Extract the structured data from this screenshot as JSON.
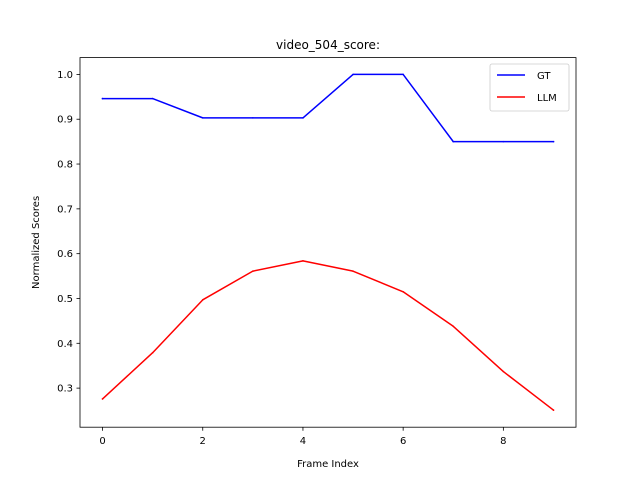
{
  "chart_data": {
    "type": "line",
    "title": "video_504_score:",
    "xlabel": "Frame Index",
    "ylabel": "Normalized Scores",
    "x": [
      0,
      1,
      2,
      3,
      4,
      5,
      6,
      7,
      8,
      9
    ],
    "xlim": [
      -0.45,
      9.45
    ],
    "ylim": [
      0.2128,
      1.0375
    ],
    "xticks": [
      0,
      2,
      4,
      6,
      8
    ],
    "yticks": [
      0.3,
      0.4,
      0.5,
      0.6,
      0.7,
      0.8,
      0.9,
      1.0
    ],
    "ytick_labels": [
      "0.3",
      "0.4",
      "0.5",
      "0.6",
      "0.7",
      "0.8",
      "0.9",
      "1.0"
    ],
    "grid": false,
    "legend_position": "top-right",
    "series": [
      {
        "name": "GT",
        "color": "#0000ff",
        "values": [
          0.946,
          0.946,
          0.903,
          0.903,
          0.903,
          1.0,
          1.0,
          0.85,
          0.85,
          0.85
        ]
      },
      {
        "name": "LLM",
        "color": "#ff0000",
        "values": [
          0.276,
          0.379,
          0.497,
          0.561,
          0.584,
          0.561,
          0.515,
          0.438,
          0.337,
          0.251
        ]
      }
    ]
  }
}
